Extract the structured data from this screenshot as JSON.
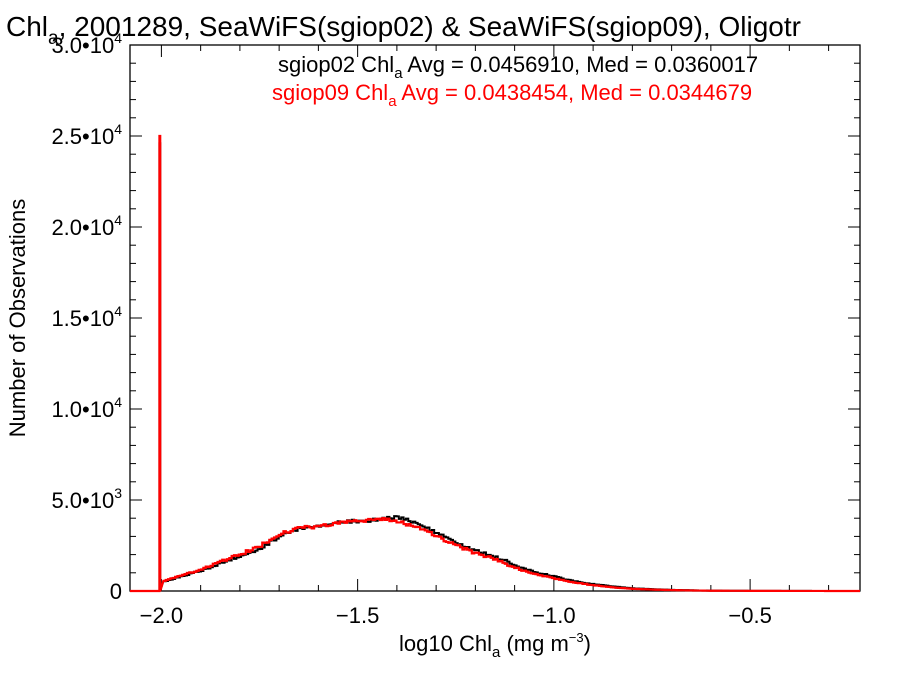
{
  "chart_data": {
    "type": "line",
    "title_parts": [
      "Chl",
      "a",
      ", 2001289, SeaWiFS(sgiop02) & SeaWiFS(sgiop09), Oligotr"
    ],
    "xlabel_parts": [
      "log10 Chl",
      "a",
      " (mg m",
      "−3",
      ")"
    ],
    "ylabel": "Number of Observations",
    "xlim": [
      -2.08,
      -0.22
    ],
    "ylim": [
      0,
      30000
    ],
    "x_ticks": [
      {
        "value": -2.0,
        "label": "−2.0"
      },
      {
        "value": -1.5,
        "label": "−1.5"
      },
      {
        "value": -1.0,
        "label": "−1.0"
      },
      {
        "value": -0.5,
        "label": "−0.5"
      }
    ],
    "y_ticks": [
      {
        "value": 0,
        "mant": "0",
        "exp": ""
      },
      {
        "value": 5000,
        "mant": "5.0•10",
        "exp": "3"
      },
      {
        "value": 10000,
        "mant": "1.0•10",
        "exp": "4"
      },
      {
        "value": 15000,
        "mant": "1.5•10",
        "exp": "4"
      },
      {
        "value": 20000,
        "mant": "2.0•10",
        "exp": "4"
      },
      {
        "value": 25000,
        "mant": "2.5•10",
        "exp": "4"
      },
      {
        "value": 30000,
        "mant": "3.0•10",
        "exp": "4"
      }
    ],
    "annotations": [
      {
        "color": "#000000",
        "parts": [
          "sgiop02 Chl",
          "a",
          " Avg = 0.0456910, Med = 0.0360017"
        ]
      },
      {
        "color": "#ff0000",
        "parts": [
          "sgiop09 Chl",
          "a",
          " Avg = 0.0438454, Med = 0.0344679"
        ]
      }
    ],
    "series": [
      {
        "color": "#000000",
        "x": [
          -2.08,
          -2.005,
          -2.004,
          -2.003,
          -1.995,
          -1.95,
          -1.9,
          -1.85,
          -1.8,
          -1.75,
          -1.7,
          -1.65,
          -1.6,
          -1.55,
          -1.5,
          -1.45,
          -1.4,
          -1.35,
          -1.3,
          -1.25,
          -1.2,
          -1.15,
          -1.1,
          -1.05,
          -1.0,
          -0.95,
          -0.9,
          -0.85,
          -0.8,
          -0.75,
          -0.7,
          -0.65,
          -0.6,
          -0.5,
          -0.4,
          -0.22
        ],
        "y": [
          0,
          0,
          24600,
          0,
          500,
          800,
          1100,
          1500,
          1900,
          2300,
          3000,
          3400,
          3600,
          3750,
          3850,
          3900,
          4050,
          3750,
          3200,
          2650,
          2250,
          1900,
          1450,
          1050,
          800,
          550,
          380,
          250,
          150,
          100,
          60,
          40,
          20,
          10,
          5,
          0
        ]
      },
      {
        "color": "#ff0000",
        "x": [
          -2.08,
          -2.005,
          -2.004,
          -2.003,
          -1.995,
          -1.95,
          -1.9,
          -1.85,
          -1.8,
          -1.75,
          -1.7,
          -1.65,
          -1.6,
          -1.55,
          -1.5,
          -1.45,
          -1.4,
          -1.35,
          -1.3,
          -1.25,
          -1.2,
          -1.15,
          -1.1,
          -1.05,
          -1.0,
          -0.95,
          -0.9,
          -0.85,
          -0.8,
          -0.75,
          -0.7,
          -0.65,
          -0.6,
          -0.5,
          -0.4,
          -0.22
        ],
        "y": [
          0,
          0,
          25000,
          0,
          550,
          850,
          1150,
          1600,
          2000,
          2450,
          3100,
          3450,
          3550,
          3700,
          3850,
          3950,
          3850,
          3500,
          3050,
          2500,
          2100,
          1750,
          1300,
          950,
          700,
          480,
          320,
          200,
          120,
          80,
          50,
          30,
          15,
          8,
          4,
          0
        ]
      }
    ]
  }
}
